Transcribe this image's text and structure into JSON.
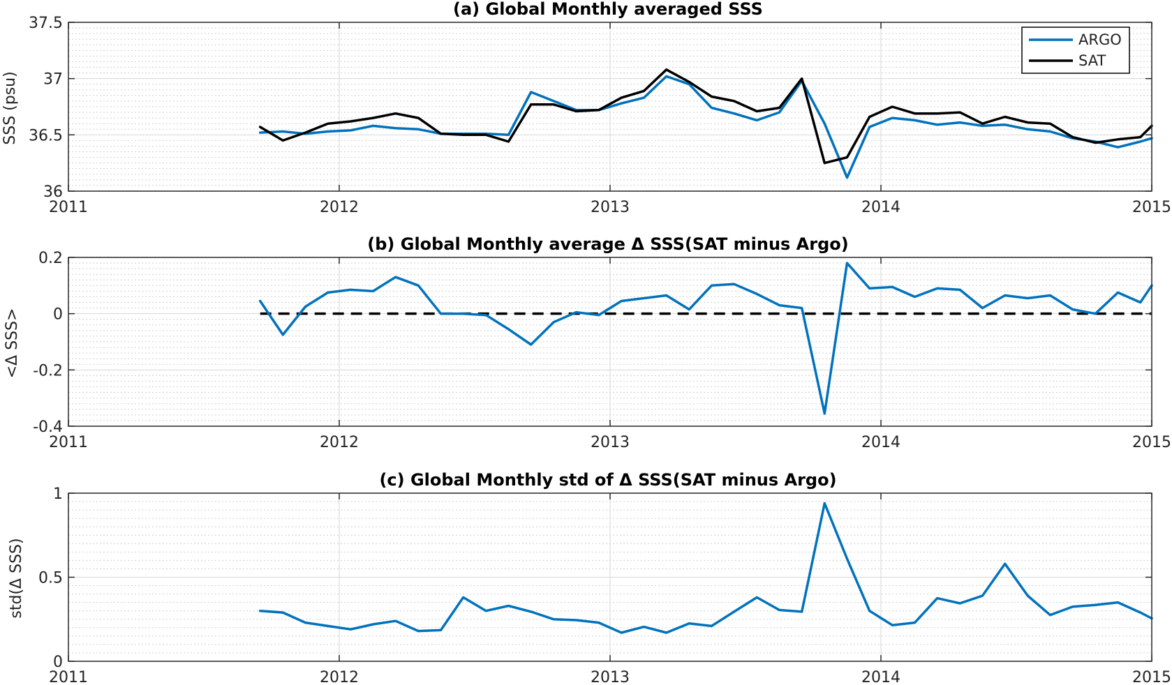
{
  "colors": {
    "argo": "#0072bd",
    "sat": "#000000",
    "grid": "#d6d6d6",
    "minor_grid": "#cfcfcf"
  },
  "chart_data": [
    {
      "type": "line",
      "title": "(a) Global Monthly averaged SSS",
      "xlabel": "",
      "ylabel": "SSS (psu)",
      "xlim": [
        2011,
        2015
      ],
      "ylim": [
        36,
        37.5
      ],
      "x_ticks": [
        2011,
        2012,
        2013,
        2014,
        2015
      ],
      "x_tick_labels": [
        "2011",
        "2012",
        "2013",
        "2014",
        "2015"
      ],
      "y_ticks": [
        36,
        36.5,
        37,
        37.5
      ],
      "y_tick_labels": [
        "36",
        "36.5",
        "37",
        "37.5"
      ],
      "grid": "on, major and minor",
      "legend": "top-right",
      "x": [
        2011.708,
        2011.792,
        2011.875,
        2011.958,
        2012.042,
        2012.125,
        2012.208,
        2012.292,
        2012.375,
        2012.458,
        2012.542,
        2012.625,
        2012.708,
        2012.792,
        2012.875,
        2012.958,
        2013.042,
        2013.125,
        2013.208,
        2013.292,
        2013.375,
        2013.458,
        2013.542,
        2013.625,
        2013.708,
        2013.792,
        2013.875,
        2013.958,
        2014.042,
        2014.125,
        2014.208,
        2014.292,
        2014.375,
        2014.458,
        2014.542,
        2014.625,
        2014.708,
        2014.792,
        2014.875,
        2014.958,
        2015.0
      ],
      "series": [
        {
          "name": "ARGO",
          "color": "#0072bd",
          "values": [
            36.52,
            36.53,
            36.51,
            36.53,
            36.54,
            36.58,
            36.56,
            36.55,
            36.51,
            36.51,
            36.51,
            36.5,
            36.88,
            36.8,
            36.72,
            36.72,
            36.78,
            36.83,
            37.02,
            36.95,
            36.74,
            36.69,
            36.63,
            36.7,
            36.98,
            36.6,
            36.12,
            36.57,
            36.65,
            36.63,
            36.59,
            36.61,
            36.58,
            36.59,
            36.55,
            36.53,
            36.47,
            36.44,
            36.39,
            36.44,
            36.47
          ]
        },
        {
          "name": "SAT",
          "color": "#000000",
          "values": [
            36.57,
            36.45,
            36.52,
            36.6,
            36.62,
            36.65,
            36.69,
            36.65,
            36.51,
            36.5,
            36.5,
            36.44,
            36.77,
            36.77,
            36.71,
            36.72,
            36.83,
            36.89,
            37.08,
            36.97,
            36.84,
            36.8,
            36.71,
            36.74,
            37.0,
            36.25,
            36.3,
            36.66,
            36.75,
            36.69,
            36.69,
            36.7,
            36.6,
            36.66,
            36.61,
            36.6,
            36.48,
            36.43,
            36.46,
            36.48,
            36.58
          ]
        }
      ]
    },
    {
      "type": "line",
      "title": "(b) Global Monthly average Δ SSS(SAT minus Argo)",
      "xlabel": "",
      "ylabel": "<Δ SSS>",
      "xlim": [
        2011,
        2015
      ],
      "ylim": [
        -0.4,
        0.2
      ],
      "x_ticks": [
        2011,
        2012,
        2013,
        2014,
        2015
      ],
      "x_tick_labels": [
        "2011",
        "2012",
        "2013",
        "2014",
        "2015"
      ],
      "y_ticks": [
        -0.4,
        -0.2,
        0,
        0.2
      ],
      "y_tick_labels": [
        "-0.4",
        "-0.2",
        "0",
        "0.2"
      ],
      "grid": "on, major and minor",
      "reference_line": {
        "y": 0,
        "style": "dashed",
        "color": "#000000"
      },
      "x": [
        2011.708,
        2011.792,
        2011.875,
        2011.958,
        2012.042,
        2012.125,
        2012.208,
        2012.292,
        2012.375,
        2012.458,
        2012.542,
        2012.625,
        2012.708,
        2012.792,
        2012.875,
        2012.958,
        2013.042,
        2013.125,
        2013.208,
        2013.292,
        2013.375,
        2013.458,
        2013.542,
        2013.625,
        2013.708,
        2013.792,
        2013.875,
        2013.958,
        2014.042,
        2014.125,
        2014.208,
        2014.292,
        2014.375,
        2014.458,
        2014.542,
        2014.625,
        2014.708,
        2014.792,
        2014.875,
        2014.958,
        2015.0
      ],
      "series": [
        {
          "color": "#0072bd",
          "values": [
            0.045,
            -0.075,
            0.025,
            0.075,
            0.085,
            0.08,
            0.13,
            0.1,
            0.0,
            0.0,
            -0.005,
            -0.055,
            -0.11,
            -0.03,
            0.005,
            -0.005,
            0.045,
            0.055,
            0.065,
            0.015,
            0.1,
            0.105,
            0.07,
            0.03,
            0.02,
            -0.355,
            0.18,
            0.09,
            0.095,
            0.06,
            0.09,
            0.085,
            0.02,
            0.065,
            0.055,
            0.065,
            0.015,
            0.0,
            0.075,
            0.04,
            0.1
          ]
        }
      ]
    },
    {
      "type": "line",
      "title": "(c) Global Monthly std of Δ SSS(SAT minus Argo)",
      "xlabel": "",
      "ylabel": "std(Δ SSS)",
      "xlim": [
        2011,
        2015
      ],
      "ylim": [
        0,
        1
      ],
      "x_ticks": [
        2011,
        2012,
        2013,
        2014,
        2015
      ],
      "x_tick_labels": [
        "2011",
        "2012",
        "2013",
        "2014",
        "2015"
      ],
      "y_ticks": [
        0,
        0.5,
        1
      ],
      "y_tick_labels": [
        "0",
        "0.5",
        "1"
      ],
      "grid": "on, major and minor",
      "x": [
        2011.708,
        2011.792,
        2011.875,
        2011.958,
        2012.042,
        2012.125,
        2012.208,
        2012.292,
        2012.375,
        2012.458,
        2012.542,
        2012.625,
        2012.708,
        2012.792,
        2012.875,
        2012.958,
        2013.042,
        2013.125,
        2013.208,
        2013.292,
        2013.375,
        2013.458,
        2013.542,
        2013.625,
        2013.708,
        2013.792,
        2013.875,
        2013.958,
        2014.042,
        2014.125,
        2014.208,
        2014.292,
        2014.375,
        2014.458,
        2014.542,
        2014.625,
        2014.708,
        2014.792,
        2014.875,
        2014.958,
        2015.0
      ],
      "series": [
        {
          "color": "#0072bd",
          "values": [
            0.3,
            0.29,
            0.23,
            0.21,
            0.19,
            0.22,
            0.24,
            0.18,
            0.185,
            0.38,
            0.3,
            0.33,
            0.295,
            0.25,
            0.245,
            0.23,
            0.17,
            0.205,
            0.17,
            0.225,
            0.21,
            0.295,
            0.38,
            0.305,
            0.295,
            0.94,
            0.61,
            0.3,
            0.215,
            0.23,
            0.375,
            0.345,
            0.39,
            0.58,
            0.39,
            0.275,
            0.325,
            0.335,
            0.35,
            0.29,
            0.255
          ]
        }
      ]
    }
  ]
}
